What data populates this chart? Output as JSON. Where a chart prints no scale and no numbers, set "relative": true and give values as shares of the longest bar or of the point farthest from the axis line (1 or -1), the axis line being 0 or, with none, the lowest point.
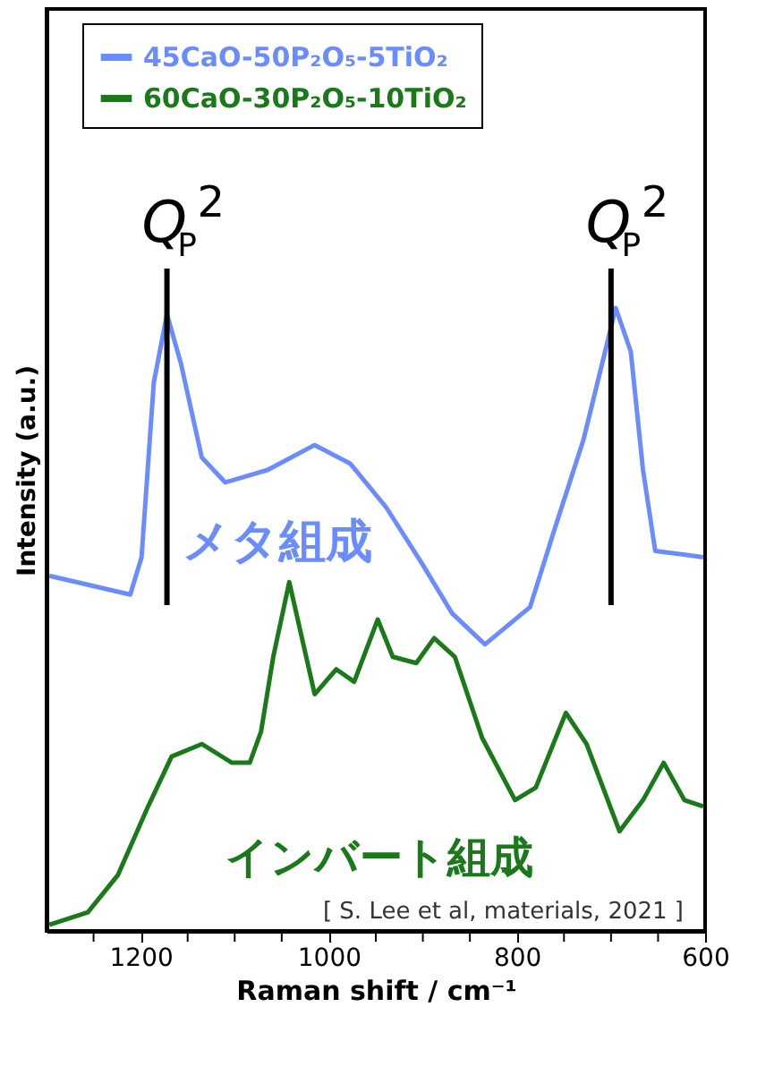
{
  "chart_data": {
    "type": "line",
    "relative": true,
    "xlabel": "Raman shift / cm⁻¹",
    "ylabel": "Intensity (a.u.)",
    "xlim": [
      1300,
      600
    ],
    "xticks": [
      {
        "value": 1250,
        "label": null
      },
      1200,
      {
        "value": 1150,
        "label": null
      },
      {
        "value": 1100,
        "label": null
      },
      {
        "value": 1050,
        "label": null
      },
      1000,
      {
        "value": 950,
        "label": null
      },
      {
        "value": 900,
        "label": null
      },
      {
        "value": 850,
        "label": null
      },
      800,
      {
        "value": 750,
        "label": null
      },
      {
        "value": 700,
        "label": null
      },
      {
        "value": 650,
        "label": null
      },
      600
    ],
    "grid": false,
    "legend": "top",
    "marker": "none",
    "line_style": "solid",
    "series": [
      {
        "name": "45CaO-50P₂O₅-5TiO₂",
        "color": "#6a8cff",
        "x": [
          1297,
          1211,
          1199,
          1186,
          1172,
          1157,
          1135,
          1110,
          1065,
          1015,
          977,
          939,
          901,
          869,
          834,
          786,
          761,
          729,
          695,
          679,
          666,
          653,
          602
        ],
        "values": [
          0.57,
          0.54,
          0.6,
          0.88,
          0.99,
          0.91,
          0.76,
          0.72,
          0.74,
          0.78,
          0.75,
          0.68,
          0.59,
          0.51,
          0.46,
          0.52,
          0.64,
          0.79,
          1.0,
          0.93,
          0.74,
          0.61,
          0.6
        ]
      },
      {
        "name": "60CaO-30P₂O₅-10TiO₂",
        "color": "#1a7a1a",
        "x": [
          1297,
          1256,
          1224,
          1192,
          1167,
          1135,
          1103,
          1084,
          1072,
          1059,
          1042,
          1027,
          1015,
          992,
          973,
          948,
          932,
          907,
          888,
          866,
          837,
          802,
          780,
          748,
          726,
          691,
          666,
          644,
          622,
          602
        ],
        "values": [
          0.01,
          0.03,
          0.09,
          0.2,
          0.28,
          0.3,
          0.27,
          0.27,
          0.32,
          0.44,
          0.56,
          0.46,
          0.38,
          0.42,
          0.4,
          0.5,
          0.44,
          0.43,
          0.47,
          0.44,
          0.31,
          0.21,
          0.23,
          0.35,
          0.3,
          0.16,
          0.21,
          0.27,
          0.21,
          0.2
        ]
      }
    ],
    "ref_lines": [
      {
        "axis": "x",
        "value": 1172,
        "label": "Q$_{P}$$^{2}$",
        "color": "#000000"
      },
      {
        "axis": "x",
        "value": 700,
        "label": "Q$_{P}$$^{2}$",
        "color": "#000000"
      }
    ],
    "annotations": [
      "メタ組成",
      "インバート組成",
      "[ S. Lee et al, materials, 2021 ]"
    ]
  }
}
